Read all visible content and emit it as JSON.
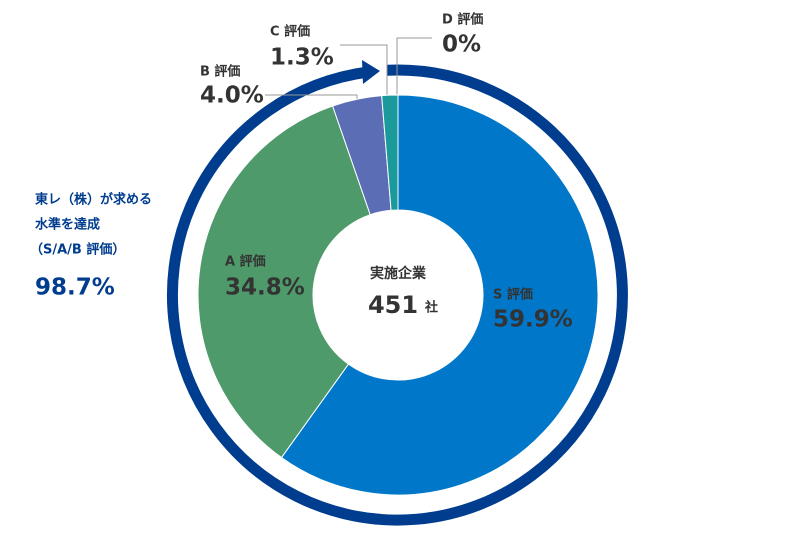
{
  "chart_data": {
    "type": "donut",
    "categories": [
      "S 評価",
      "A 評価",
      "B 評価",
      "C 評価",
      "D 評価"
    ],
    "values": [
      59.9,
      34.8,
      4.0,
      1.3,
      0
    ],
    "value_labels": [
      "59.9%",
      "34.8%",
      "4.0%",
      "1.3%",
      "0%"
    ],
    "colors": [
      "#0077c8",
      "#4f9a6a",
      "#5b6db5",
      "#1a9a9a",
      "#1a9a9a"
    ],
    "center_label": "実施企業",
    "center_value": 451,
    "center_unit": "社",
    "annotation": {
      "lines": [
        "東レ（株）が求める",
        "水準を達成",
        "（S/A/B 評価）"
      ],
      "value": "98.7%"
    }
  }
}
